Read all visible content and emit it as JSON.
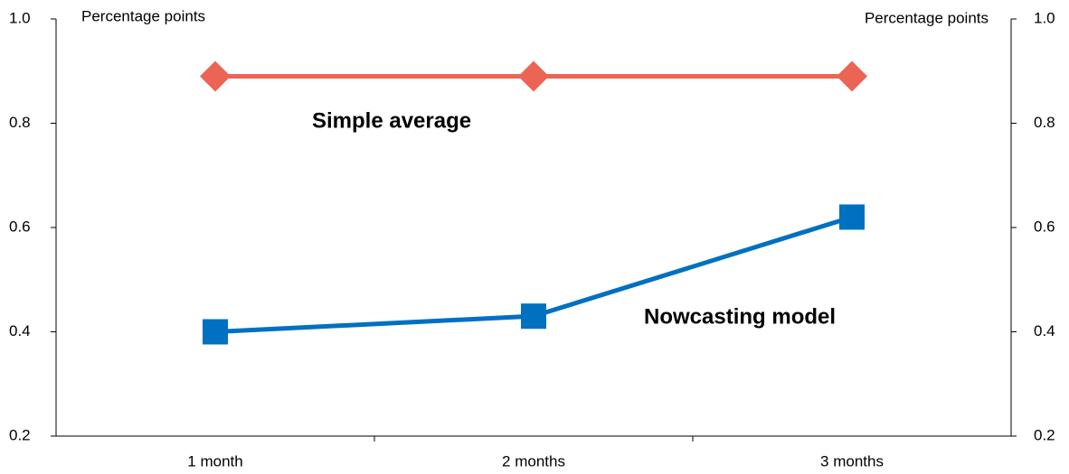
{
  "chart_data": {
    "type": "line",
    "y_axis_label": "Percentage points",
    "y2_axis_label": "Percentage points",
    "categories": [
      "1 month",
      "2 months",
      "3 months"
    ],
    "series": [
      {
        "name": "Simple average",
        "color": "#ec6454",
        "marker": "diamond",
        "values": [
          0.89,
          0.89,
          0.89
        ]
      },
      {
        "name": "Nowcasting model",
        "color": "#0070c0",
        "marker": "square",
        "values": [
          0.4,
          0.43,
          0.62
        ]
      }
    ],
    "ylim": [
      0.2,
      1.0
    ],
    "yticks": [
      0.2,
      0.4,
      0.6,
      0.8,
      {
        "value": 1.0,
        "label": "1.0"
      }
    ],
    "y2lim": [
      0.2,
      1.0
    ],
    "y2ticks": [
      0.2,
      0.4,
      0.6,
      0.8,
      {
        "value": 1.0,
        "label": "1.0"
      }
    ],
    "grid": false
  }
}
